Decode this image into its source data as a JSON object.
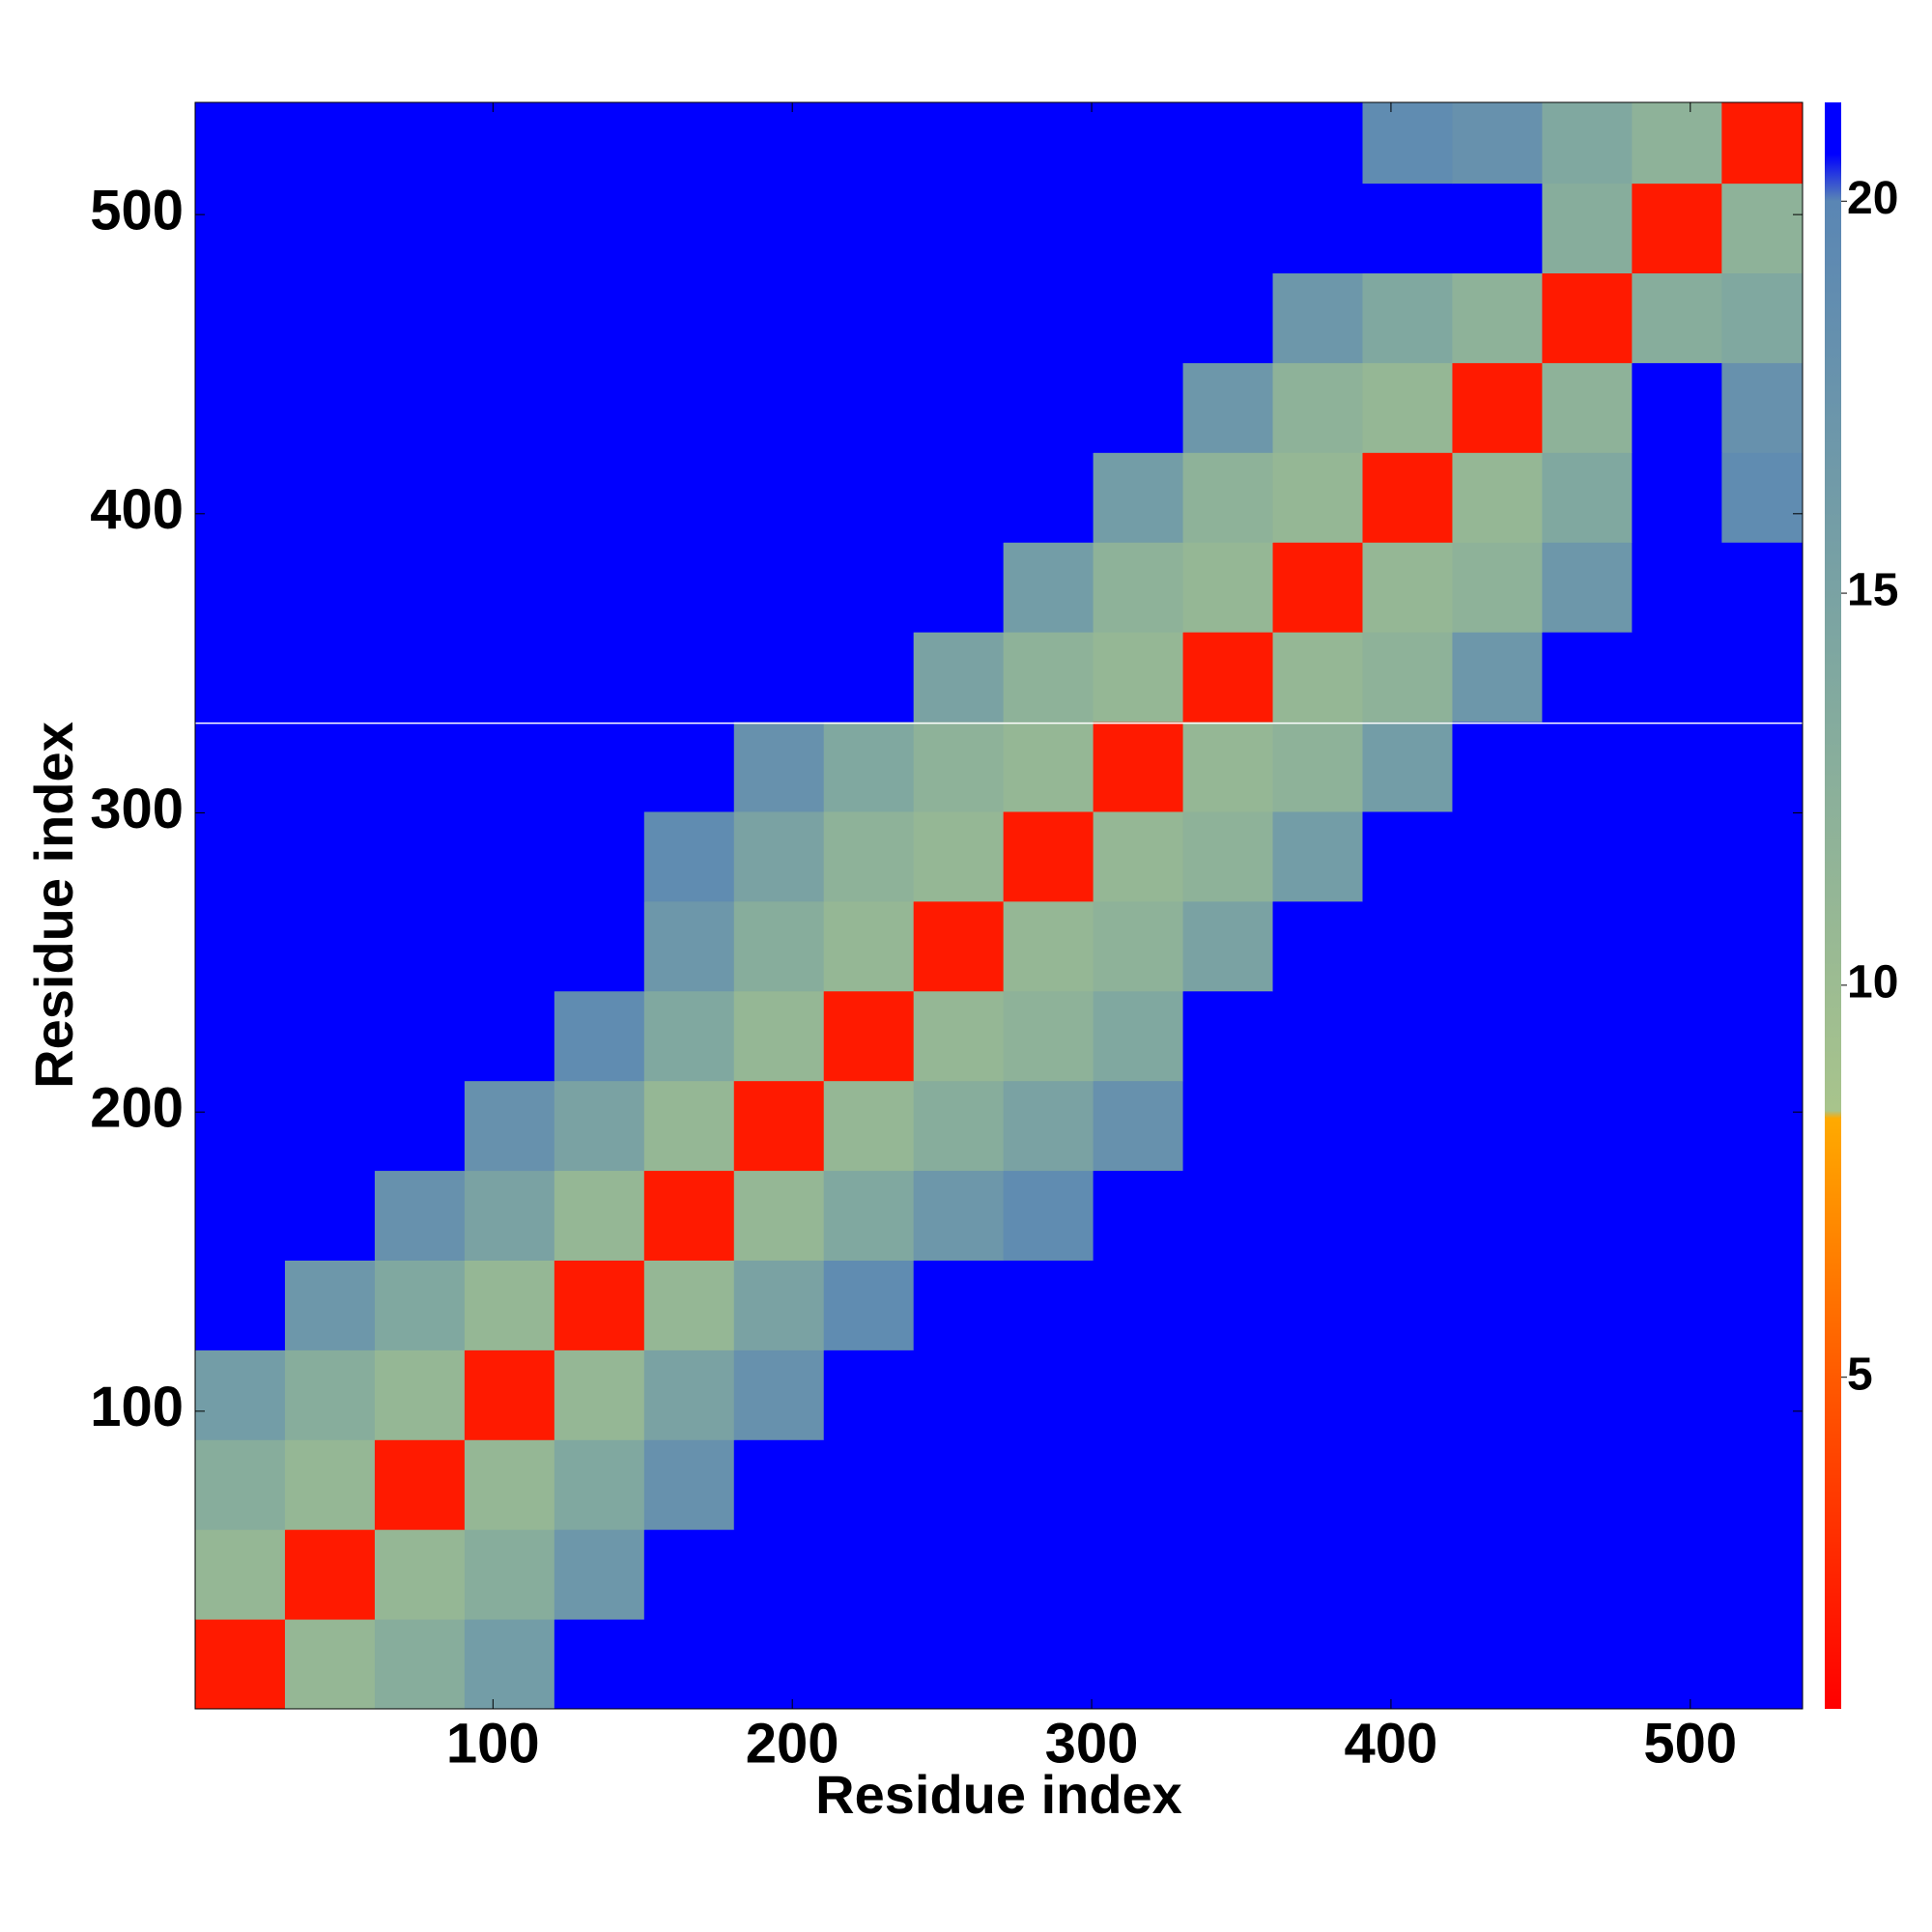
{
  "chart_data": {
    "type": "heatmap",
    "x_label": "Residue index",
    "y_label": "Residue index",
    "x_bins": [
      0.5,
      30.5,
      60.5,
      90.5,
      120.5,
      150.5,
      180.5,
      210.5,
      240.5,
      270.5,
      300.5,
      330.5,
      360.5,
      390.5,
      420.5,
      450.5,
      480.5,
      510.5,
      537.5
    ],
    "y_bins": [
      0.5,
      30.5,
      60.5,
      90.5,
      120.5,
      150.5,
      180.5,
      210.5,
      240.5,
      270.5,
      300.5,
      330.5,
      360.5,
      390.5,
      420.5,
      450.5,
      480.5,
      510.5,
      537.5
    ],
    "z": [
      [
        2,
        11,
        13,
        16,
        21,
        21,
        21,
        21,
        21,
        21,
        21,
        21,
        21,
        21,
        21,
        21,
        21,
        21
      ],
      [
        11,
        2,
        11,
        13,
        17,
        21,
        21,
        21,
        21,
        21,
        21,
        21,
        21,
        21,
        21,
        21,
        21,
        21
      ],
      [
        13,
        11,
        2,
        11,
        14,
        18,
        21,
        21,
        21,
        21,
        21,
        21,
        21,
        21,
        21,
        21,
        21,
        21
      ],
      [
        16,
        13,
        11,
        2,
        11,
        15,
        18,
        21,
        21,
        21,
        21,
        21,
        21,
        21,
        21,
        21,
        21,
        21
      ],
      [
        21,
        17,
        14,
        11,
        2,
        11,
        15,
        19,
        21,
        21,
        21,
        21,
        21,
        21,
        21,
        21,
        21,
        21
      ],
      [
        21,
        21,
        18,
        15,
        11,
        2,
        11,
        14,
        17,
        19,
        21,
        21,
        21,
        21,
        21,
        21,
        21,
        21
      ],
      [
        21,
        21,
        21,
        18,
        15,
        11,
        2,
        11,
        13,
        15,
        18,
        21,
        21,
        21,
        21,
        21,
        21,
        21
      ],
      [
        21,
        21,
        21,
        21,
        19,
        14,
        11,
        2,
        11,
        12,
        14,
        21,
        21,
        21,
        21,
        21,
        21,
        21
      ],
      [
        21,
        21,
        21,
        21,
        21,
        17,
        13,
        11,
        2,
        11,
        12,
        15,
        21,
        21,
        21,
        21,
        21,
        21
      ],
      [
        21,
        21,
        21,
        21,
        21,
        19,
        15,
        12,
        11,
        2,
        11,
        12,
        16,
        21,
        21,
        21,
        21,
        21
      ],
      [
        21,
        21,
        21,
        21,
        21,
        21,
        18,
        14,
        12,
        11,
        2,
        11,
        12,
        16,
        21,
        21,
        21,
        21
      ],
      [
        21,
        21,
        21,
        21,
        21,
        21,
        21,
        21,
        15,
        12,
        11,
        2,
        11,
        12,
        17,
        21,
        21,
        21
      ],
      [
        21,
        21,
        21,
        21,
        21,
        21,
        21,
        21,
        21,
        16,
        12,
        11,
        2,
        11,
        12,
        17,
        21,
        21
      ],
      [
        21,
        21,
        21,
        21,
        21,
        21,
        21,
        21,
        21,
        21,
        16,
        12,
        11,
        2,
        11,
        14,
        21,
        19
      ],
      [
        21,
        21,
        21,
        21,
        21,
        21,
        21,
        21,
        21,
        21,
        21,
        17,
        12,
        11,
        2,
        12,
        21,
        18
      ],
      [
        21,
        21,
        21,
        21,
        21,
        21,
        21,
        21,
        21,
        21,
        21,
        21,
        17,
        14,
        12,
        2,
        13,
        14
      ],
      [
        21,
        21,
        21,
        21,
        21,
        21,
        21,
        21,
        21,
        21,
        21,
        21,
        21,
        21,
        21,
        13,
        2,
        12
      ],
      [
        21,
        21,
        21,
        21,
        21,
        21,
        21,
        21,
        21,
        21,
        21,
        21,
        21,
        19,
        18,
        14,
        12,
        2
      ]
    ],
    "xlim": [
      0.5,
      537.5
    ],
    "ylim": [
      0.5,
      537.5
    ],
    "xticks": [
      100,
      200,
      300,
      400,
      500
    ],
    "yticks": [
      100,
      200,
      300,
      400,
      500
    ],
    "clim": [
      0.77,
      21.26
    ],
    "cticks": [
      5,
      10,
      15,
      20
    ],
    "colorscale": [
      [
        0.77,
        "#ff0000"
      ],
      [
        5,
        "#ff5a00"
      ],
      [
        8.3,
        "#ffaa00"
      ],
      [
        8.4,
        "#a8c48c"
      ],
      [
        14,
        "#80a8a0"
      ],
      [
        20,
        "#5a86b4"
      ],
      [
        20.6,
        "#0000ff"
      ],
      [
        21.26,
        "#0000ff"
      ]
    ],
    "hlines": [
      330
    ]
  }
}
